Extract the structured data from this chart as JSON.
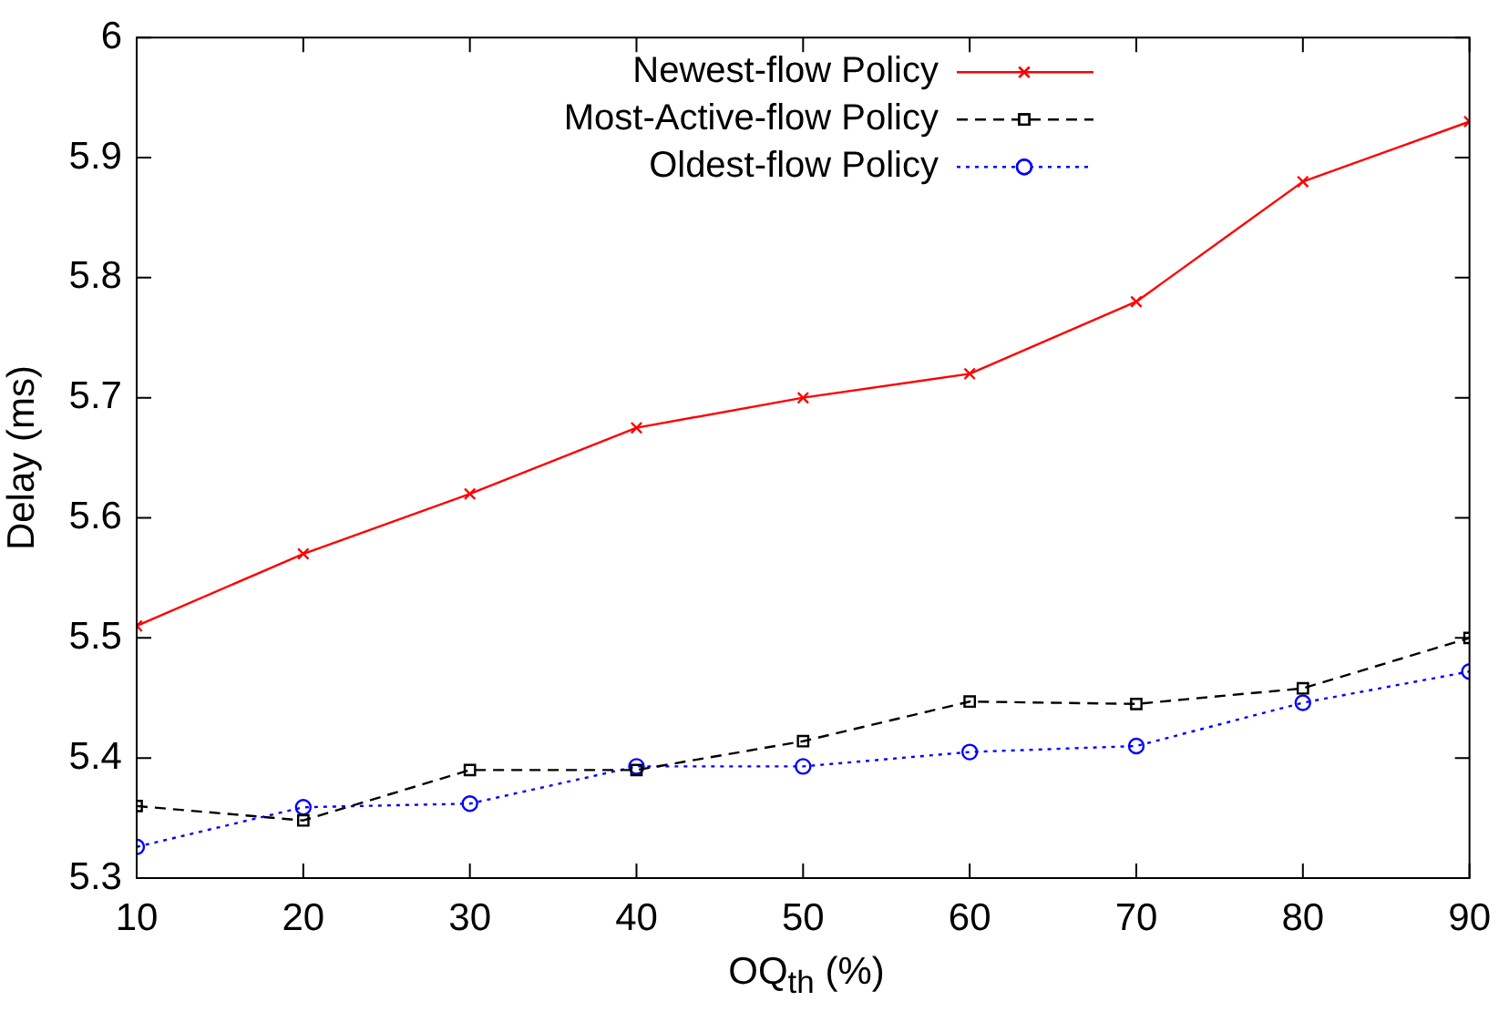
{
  "chart_data": {
    "type": "line",
    "xlabel": "OQ$_{th}$ (%)",
    "ylabel": "Delay (ms)",
    "x": [
      10,
      20,
      30,
      40,
      50,
      60,
      70,
      80,
      90
    ],
    "xlim": [
      10,
      90
    ],
    "xticks": [
      10,
      20,
      30,
      40,
      50,
      60,
      70,
      80,
      90
    ],
    "ylim": [
      5.3,
      6
    ],
    "yticks": [
      5.3,
      5.4,
      5.5,
      5.6,
      5.7,
      5.8,
      5.9,
      6
    ],
    "grid": false,
    "legend": "top",
    "series": [
      {
        "name": "Newest-flow Policy",
        "color": "#ff0000",
        "marker": "cross",
        "line_style": "solid",
        "values": [
          5.51,
          5.57,
          5.62,
          5.675,
          5.7,
          5.72,
          5.78,
          5.88,
          5.93
        ]
      },
      {
        "name": "Most-Active-flow Policy",
        "color": "#000000",
        "marker": "square",
        "line_style": "dashed",
        "values": [
          5.36,
          5.348,
          5.39,
          5.39,
          5.414,
          5.447,
          5.445,
          5.458,
          5.5
        ]
      },
      {
        "name": "Oldest-flow Policy",
        "color": "#0000ff",
        "marker": "circle",
        "line_style": "dotted",
        "values": [
          5.326,
          5.359,
          5.362,
          5.393,
          5.393,
          5.405,
          5.41,
          5.446,
          5.472
        ]
      }
    ]
  }
}
